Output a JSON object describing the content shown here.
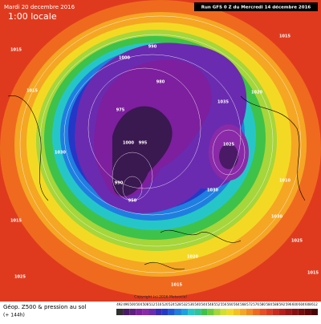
{
  "header": {
    "date": "Mardi 20 decembre 2016",
    "time": "1:00 locale",
    "run": "Run GFS 0 Z du Mercredi 14 décembre 2016"
  },
  "map": {
    "pressure_labels": [
      "1015",
      "1015",
      "1030",
      "1015",
      "1025",
      "1000",
      "990",
      "975",
      "980",
      "1000",
      "995",
      "990",
      "950",
      "1035",
      "1025",
      "1030",
      "1015",
      "1020",
      "1010",
      "1030",
      "1025",
      "1020",
      "1015",
      "1015"
    ],
    "copyright": "Copyright (c) 2016 Meteociel"
  },
  "footer": {
    "title": "Géop. Z500 & pression au sol",
    "lead": "(+ 144h)",
    "scale": [
      492,
      496,
      500,
      504,
      508,
      512,
      516,
      520,
      524,
      528,
      532,
      536,
      540,
      544,
      548,
      552,
      556,
      560,
      564,
      568,
      572,
      576,
      580,
      584,
      588,
      592,
      596,
      600,
      604,
      608,
      612
    ]
  }
}
